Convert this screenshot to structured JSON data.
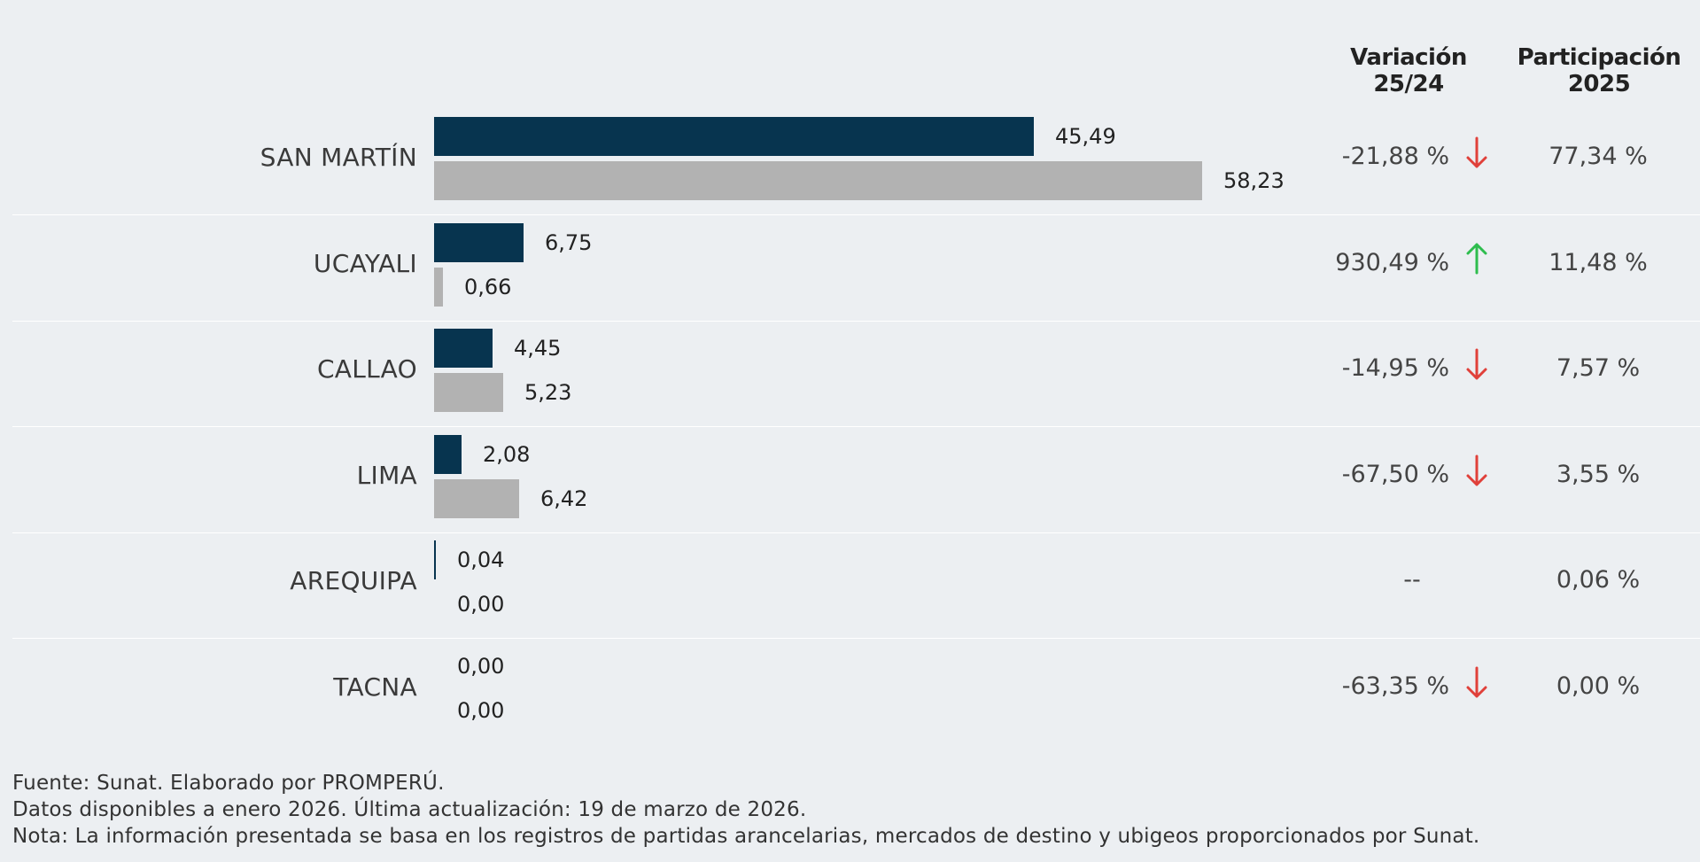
{
  "headers": {
    "variacion_line1": "Variación",
    "variacion_line2": "25/24",
    "participacion_line1": "Participación",
    "participacion_line2": "2025"
  },
  "colors": {
    "current": "#07344f",
    "previous": "#b2b2b2",
    "arrow_down": "#e0403a",
    "arrow_up": "#2ebd4e"
  },
  "chart_data": {
    "type": "bar",
    "orientation": "horizontal",
    "categories": [
      "SAN MARTÍN",
      "UCAYALI",
      "CALLAO",
      "LIMA",
      "AREQUIPA",
      "TACNA"
    ],
    "series": [
      {
        "values": [
          45.49,
          6.75,
          4.45,
          2.08,
          0.04,
          0.0
        ]
      },
      {
        "values": [
          58.23,
          0.66,
          5.23,
          6.42,
          0.0,
          0.0
        ]
      }
    ],
    "value_labels": [
      {
        "current": "45,49",
        "previous": "58,23"
      },
      {
        "current": "6,75",
        "previous": "0,66"
      },
      {
        "current": "4,45",
        "previous": "5,23"
      },
      {
        "current": "2,08",
        "previous": "6,42"
      },
      {
        "current": "0,04",
        "previous": "0,00"
      },
      {
        "current": "0,00",
        "previous": "0,00"
      }
    ],
    "variation": [
      {
        "text": "-21,88 %",
        "direction": "down"
      },
      {
        "text": "930,49 %",
        "direction": "up"
      },
      {
        "text": "-14,95 %",
        "direction": "down"
      },
      {
        "text": "-67,50 %",
        "direction": "down"
      },
      {
        "text": "--",
        "direction": "none"
      },
      {
        "text": "-63,35 %",
        "direction": "down"
      }
    ],
    "participation": [
      "77,34 %",
      "11,48 %",
      "7,57 %",
      "3,55 %",
      "0,06 %",
      "0,00 %"
    ],
    "xlim": [
      0,
      58.23
    ]
  },
  "footnotes": [
    "Fuente: Sunat. Elaborado por PROMPERÚ.",
    "Datos disponibles a enero 2026. Última actualización: 19 de marzo de 2026.",
    "Nota: La información presentada se basa en los registros de partidas arancelarias, mercados de destino y ubigeos proporcionados por Sunat."
  ]
}
